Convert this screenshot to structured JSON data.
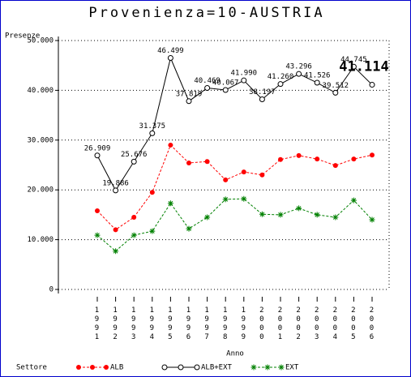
{
  "chart_data": {
    "type": "line",
    "title": "Provenienza=10-AUSTRIA",
    "y_label": "Presenze",
    "x_label": "Anno",
    "legend_title": "Settore",
    "categories": [
      "1991",
      "1992",
      "1993",
      "1994",
      "1995",
      "1996",
      "1997",
      "1998",
      "1999",
      "2000",
      "2001",
      "2002",
      "2003",
      "2004",
      "2005",
      "2006"
    ],
    "series": [
      {
        "name": "ALB",
        "color": "#ff0000",
        "dashed": true,
        "marker": "dot",
        "values": [
          15800,
          12000,
          14500,
          19500,
          29000,
          25400,
          25700,
          22000,
          23600,
          23000,
          26100,
          26900,
          26200,
          24900,
          26200,
          27000
        ]
      },
      {
        "name": "ALB+EXT",
        "color": "#000000",
        "dashed": false,
        "marker": "circle",
        "values": [
          26909,
          19886,
          25676,
          31375,
          46499,
          37819,
          40469,
          40067,
          41990,
          38197,
          41260,
          43296,
          41526,
          39512,
          44745,
          41114
        ],
        "value_labels": [
          "26.909",
          "19.886",
          "25.676",
          "31.375",
          "46.499",
          "37.819",
          "40.469",
          "40.067",
          "41.990",
          "38.197",
          "41.260",
          "43.296",
          "41.526",
          "39.512",
          "44.745",
          "41.114"
        ]
      },
      {
        "name": "EXT",
        "color": "#008000",
        "dashed": true,
        "marker": "star",
        "values": [
          10900,
          7700,
          10900,
          11700,
          17300,
          12200,
          14500,
          18100,
          18200,
          15100,
          15000,
          16300,
          15000,
          14500,
          17900,
          14000
        ]
      }
    ],
    "ylim": [
      0,
      50000
    ],
    "yticks": [
      0,
      {
        "value": 10000,
        "label": "10.000"
      },
      {
        "value": 20000,
        "label": "20.000"
      },
      {
        "value": 30000,
        "label": "30.000"
      },
      {
        "value": 40000,
        "label": "40.000"
      },
      {
        "value": 50000,
        "label": "50.000"
      }
    ],
    "grid": true
  }
}
